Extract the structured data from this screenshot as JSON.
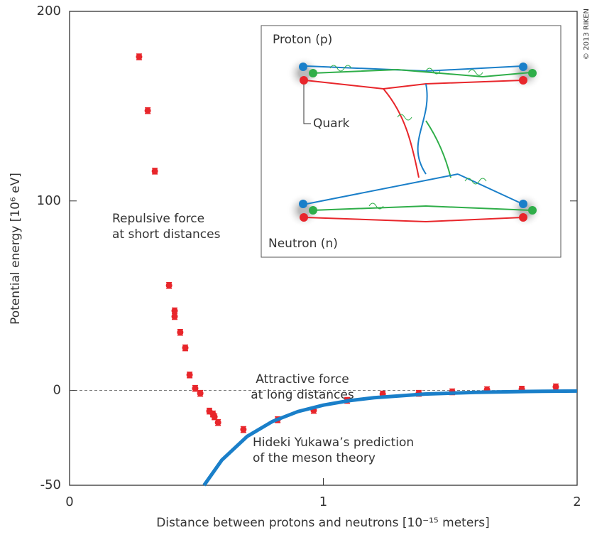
{
  "chart_data": {
    "type": "scatter",
    "x_label": "Distance between protons and neutrons [10⁻¹⁵ meters]",
    "y_label": "Potential energy [10⁶ eV]",
    "xlim": [
      0,
      2
    ],
    "xticks": [
      0,
      1,
      2
    ],
    "ylim": [
      -50,
      200
    ],
    "yticks": [
      -50,
      0,
      100,
      200
    ],
    "series": [
      {
        "color": "#e8262b",
        "x": [
          0.274,
          0.308,
          0.336,
          0.392,
          0.414,
          0.414,
          0.436,
          0.456,
          0.473,
          0.495,
          0.515,
          0.551,
          0.565,
          0.571,
          0.585,
          0.685,
          0.82,
          0.962,
          1.094,
          1.234,
          1.376,
          1.508,
          1.645,
          1.782,
          1.916
        ],
        "values": [
          176,
          147.6,
          115.7,
          55.4,
          42,
          39,
          30.7,
          22.5,
          8.2,
          1.1,
          -1.5,
          -10.9,
          -12.4,
          -13.9,
          -16.9,
          -20.6,
          -15.4,
          -10.5,
          -5.2,
          -1.9,
          -1.5,
          -0.7,
          0.4,
          0.7,
          1.9
        ],
        "errors": [
          1.5,
          1.5,
          1.5,
          1.5,
          1.5,
          1.5,
          1.5,
          1.5,
          1.5,
          1.5,
          1.5,
          1.5,
          1.5,
          1.5,
          1.5,
          1.5,
          1.5,
          1.5,
          1.5,
          1.5,
          1.5,
          1.5,
          1.5,
          1.5,
          1.5
        ]
      },
      {
        "type": "line",
        "color": "#1a7fc9",
        "x": [
          0.53,
          0.6,
          0.7,
          0.8,
          0.9,
          1.0,
          1.1,
          1.2,
          1.4,
          1.6,
          1.8,
          2.0
        ],
        "values": [
          -50,
          -36.7,
          -24.2,
          -16.3,
          -11.1,
          -7.7,
          -5.4,
          -3.8,
          -1.9,
          -0.98,
          -0.52,
          -0.27
        ]
      }
    ],
    "annotations": [
      [
        "Repulsive force",
        "at short distances"
      ],
      [
        "Attractive force",
        "at long distances"
      ],
      [
        "Hideki Yukawa’s prediction",
        "of the meson theory"
      ]
    ],
    "credit": "© 2013 RIKEN",
    "inset": {
      "proton": "Proton (p)",
      "quark": "Quark",
      "neutron": "Neutron (n)"
    }
  }
}
